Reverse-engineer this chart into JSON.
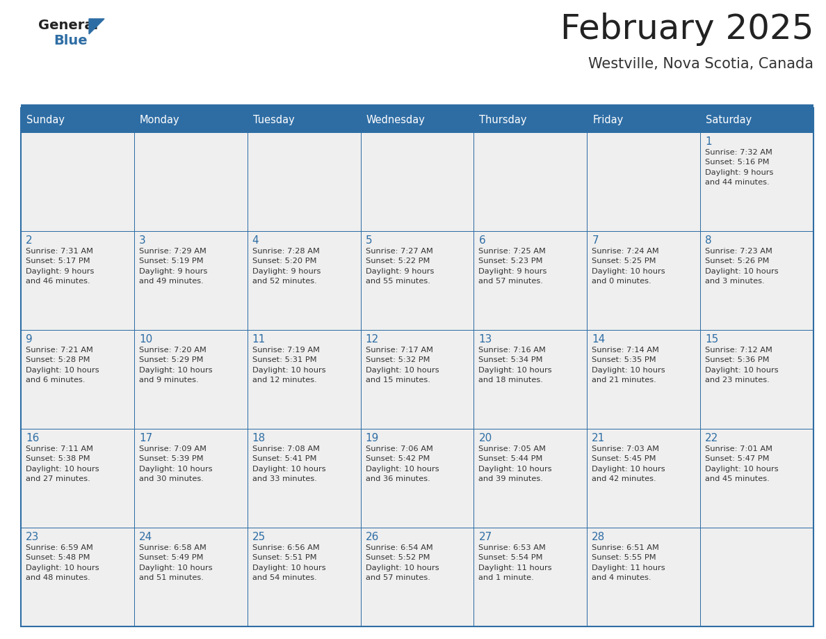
{
  "title": "February 2025",
  "subtitle": "Westville, Nova Scotia, Canada",
  "header_bg": "#2E6DA4",
  "header_text_color": "#FFFFFF",
  "cell_bg": "#EFEFEF",
  "day_number_color": "#2E6DA4",
  "cell_text_color": "#333333",
  "border_color": "#2E6DA4",
  "title_color": "#222222",
  "subtitle_color": "#333333",
  "logo_general_color": "#222222",
  "logo_blue_color": "#2E6DA4",
  "logo_triangle_color": "#2E6DA4",
  "days_of_week": [
    "Sunday",
    "Monday",
    "Tuesday",
    "Wednesday",
    "Thursday",
    "Friday",
    "Saturday"
  ],
  "weeks": [
    [
      {
        "day": null,
        "info": null
      },
      {
        "day": null,
        "info": null
      },
      {
        "day": null,
        "info": null
      },
      {
        "day": null,
        "info": null
      },
      {
        "day": null,
        "info": null
      },
      {
        "day": null,
        "info": null
      },
      {
        "day": 1,
        "info": "Sunrise: 7:32 AM\nSunset: 5:16 PM\nDaylight: 9 hours\nand 44 minutes."
      }
    ],
    [
      {
        "day": 2,
        "info": "Sunrise: 7:31 AM\nSunset: 5:17 PM\nDaylight: 9 hours\nand 46 minutes."
      },
      {
        "day": 3,
        "info": "Sunrise: 7:29 AM\nSunset: 5:19 PM\nDaylight: 9 hours\nand 49 minutes."
      },
      {
        "day": 4,
        "info": "Sunrise: 7:28 AM\nSunset: 5:20 PM\nDaylight: 9 hours\nand 52 minutes."
      },
      {
        "day": 5,
        "info": "Sunrise: 7:27 AM\nSunset: 5:22 PM\nDaylight: 9 hours\nand 55 minutes."
      },
      {
        "day": 6,
        "info": "Sunrise: 7:25 AM\nSunset: 5:23 PM\nDaylight: 9 hours\nand 57 minutes."
      },
      {
        "day": 7,
        "info": "Sunrise: 7:24 AM\nSunset: 5:25 PM\nDaylight: 10 hours\nand 0 minutes."
      },
      {
        "day": 8,
        "info": "Sunrise: 7:23 AM\nSunset: 5:26 PM\nDaylight: 10 hours\nand 3 minutes."
      }
    ],
    [
      {
        "day": 9,
        "info": "Sunrise: 7:21 AM\nSunset: 5:28 PM\nDaylight: 10 hours\nand 6 minutes."
      },
      {
        "day": 10,
        "info": "Sunrise: 7:20 AM\nSunset: 5:29 PM\nDaylight: 10 hours\nand 9 minutes."
      },
      {
        "day": 11,
        "info": "Sunrise: 7:19 AM\nSunset: 5:31 PM\nDaylight: 10 hours\nand 12 minutes."
      },
      {
        "day": 12,
        "info": "Sunrise: 7:17 AM\nSunset: 5:32 PM\nDaylight: 10 hours\nand 15 minutes."
      },
      {
        "day": 13,
        "info": "Sunrise: 7:16 AM\nSunset: 5:34 PM\nDaylight: 10 hours\nand 18 minutes."
      },
      {
        "day": 14,
        "info": "Sunrise: 7:14 AM\nSunset: 5:35 PM\nDaylight: 10 hours\nand 21 minutes."
      },
      {
        "day": 15,
        "info": "Sunrise: 7:12 AM\nSunset: 5:36 PM\nDaylight: 10 hours\nand 23 minutes."
      }
    ],
    [
      {
        "day": 16,
        "info": "Sunrise: 7:11 AM\nSunset: 5:38 PM\nDaylight: 10 hours\nand 27 minutes."
      },
      {
        "day": 17,
        "info": "Sunrise: 7:09 AM\nSunset: 5:39 PM\nDaylight: 10 hours\nand 30 minutes."
      },
      {
        "day": 18,
        "info": "Sunrise: 7:08 AM\nSunset: 5:41 PM\nDaylight: 10 hours\nand 33 minutes."
      },
      {
        "day": 19,
        "info": "Sunrise: 7:06 AM\nSunset: 5:42 PM\nDaylight: 10 hours\nand 36 minutes."
      },
      {
        "day": 20,
        "info": "Sunrise: 7:05 AM\nSunset: 5:44 PM\nDaylight: 10 hours\nand 39 minutes."
      },
      {
        "day": 21,
        "info": "Sunrise: 7:03 AM\nSunset: 5:45 PM\nDaylight: 10 hours\nand 42 minutes."
      },
      {
        "day": 22,
        "info": "Sunrise: 7:01 AM\nSunset: 5:47 PM\nDaylight: 10 hours\nand 45 minutes."
      }
    ],
    [
      {
        "day": 23,
        "info": "Sunrise: 6:59 AM\nSunset: 5:48 PM\nDaylight: 10 hours\nand 48 minutes."
      },
      {
        "day": 24,
        "info": "Sunrise: 6:58 AM\nSunset: 5:49 PM\nDaylight: 10 hours\nand 51 minutes."
      },
      {
        "day": 25,
        "info": "Sunrise: 6:56 AM\nSunset: 5:51 PM\nDaylight: 10 hours\nand 54 minutes."
      },
      {
        "day": 26,
        "info": "Sunrise: 6:54 AM\nSunset: 5:52 PM\nDaylight: 10 hours\nand 57 minutes."
      },
      {
        "day": 27,
        "info": "Sunrise: 6:53 AM\nSunset: 5:54 PM\nDaylight: 11 hours\nand 1 minute."
      },
      {
        "day": 28,
        "info": "Sunrise: 6:51 AM\nSunset: 5:55 PM\nDaylight: 11 hours\nand 4 minutes."
      },
      {
        "day": null,
        "info": null
      }
    ]
  ]
}
